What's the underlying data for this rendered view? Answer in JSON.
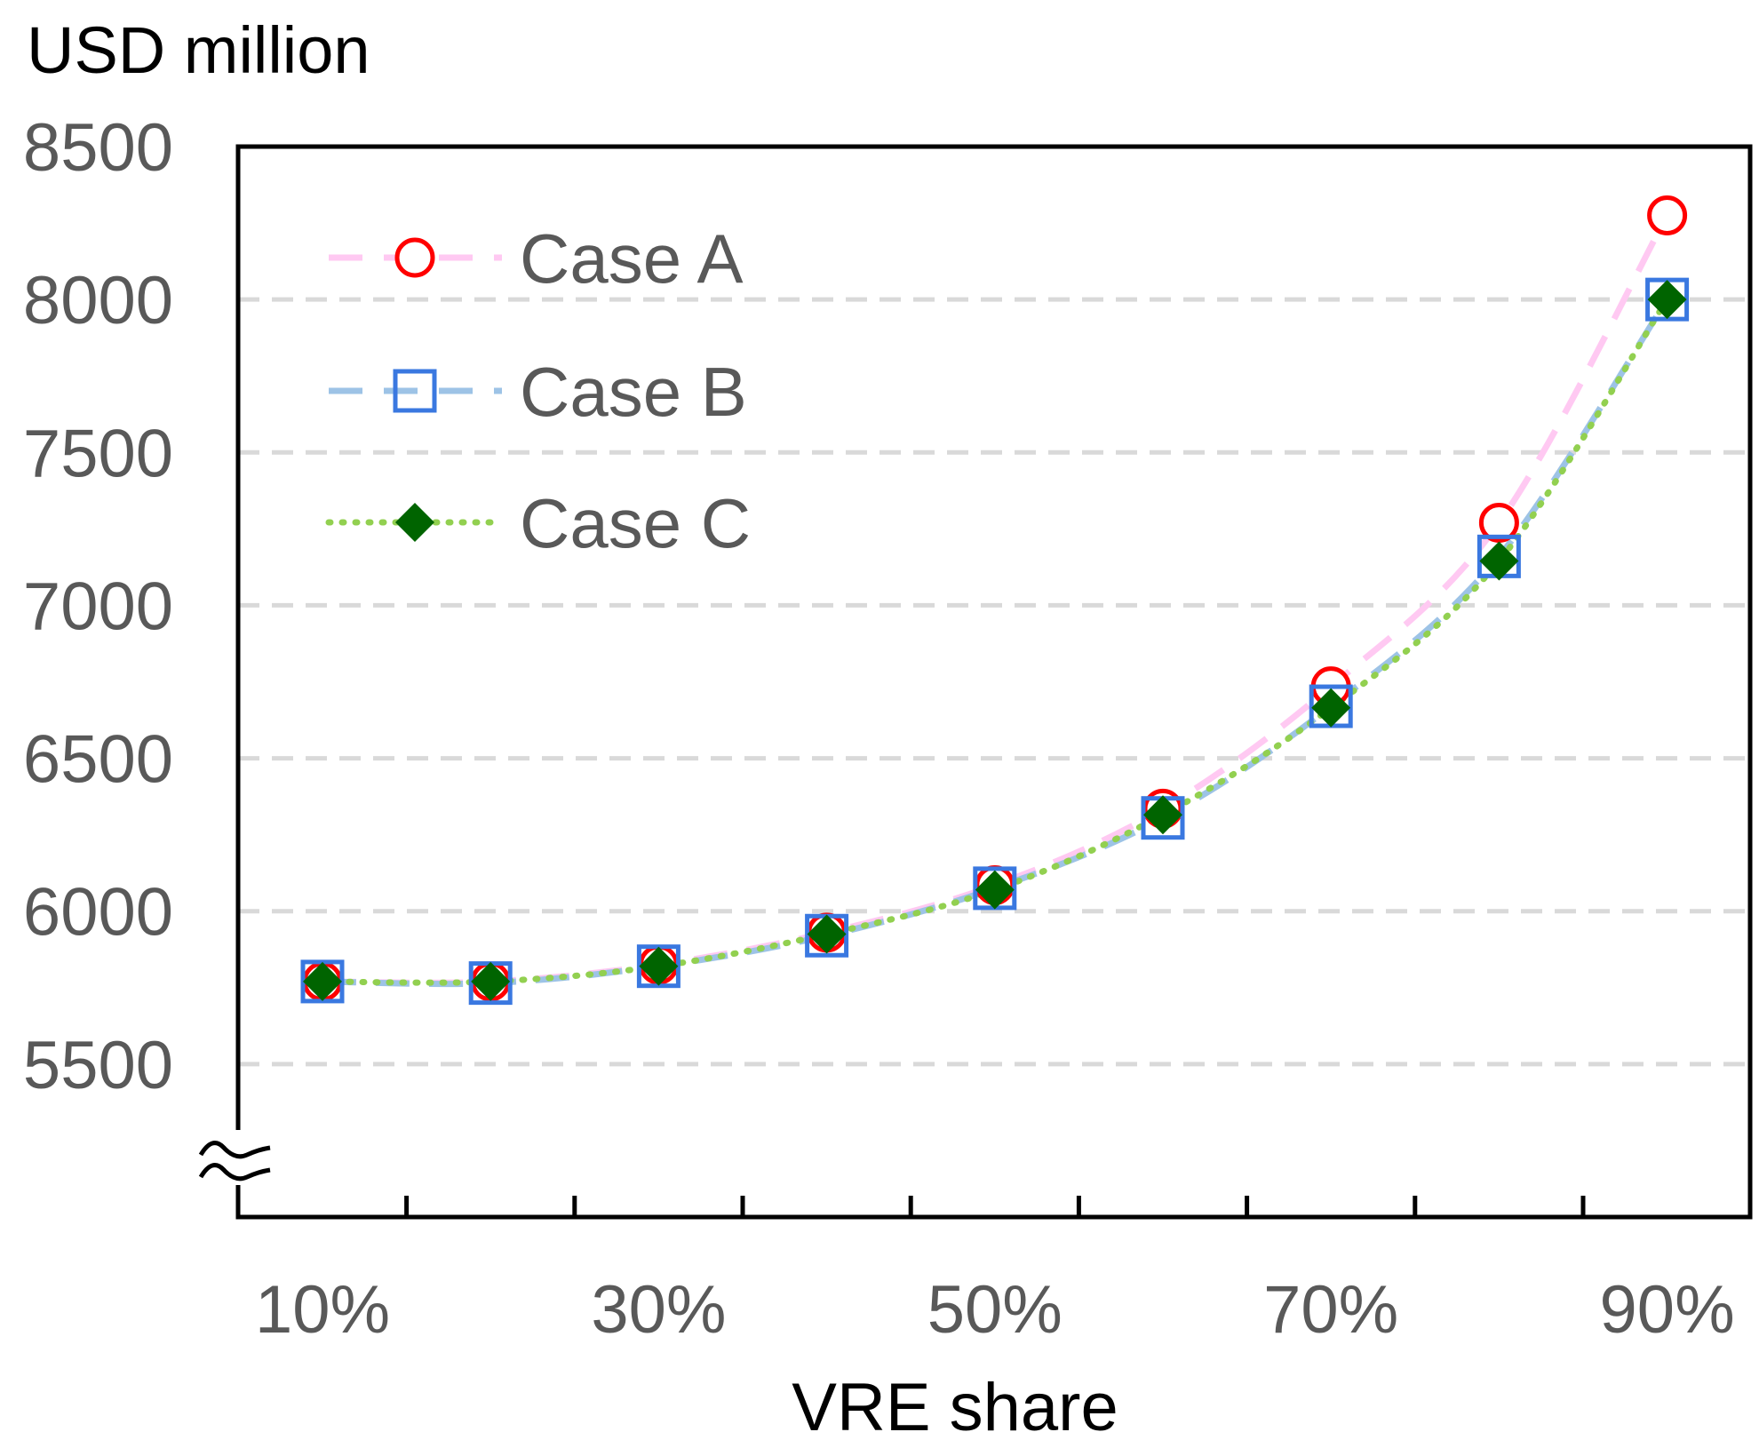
{
  "chart_data": {
    "type": "line",
    "ylabel": "USD million",
    "xlabel": "VRE share",
    "x": [
      "10%",
      "20%",
      "30%",
      "40%",
      "50%",
      "60%",
      "70%",
      "80%",
      "90%"
    ],
    "x_tick_labels": [
      "10%",
      "30%",
      "50%",
      "70%",
      "90%"
    ],
    "y_tick_labels": [
      "5500",
      "6000",
      "6500",
      "7000",
      "7500",
      "8000",
      "8500"
    ],
    "y_ticks": [
      5500,
      6000,
      6500,
      7000,
      7500,
      8000,
      8500
    ],
    "ylim": [
      5000,
      8500
    ],
    "axis_break": true,
    "grid": "horizontal-dashed",
    "legend_position": "top-left",
    "series": [
      {
        "name": "Case A",
        "values": [
          5770,
          5770,
          5825,
          5930,
          6085,
          6335,
          6735,
          7270,
          8275
        ],
        "line_color": "#ffc9f2",
        "line_style": "dashed",
        "marker": "circle",
        "marker_color": "#ff0000"
      },
      {
        "name": "Case B",
        "values": [
          5770,
          5765,
          5820,
          5920,
          6075,
          6305,
          6670,
          7160,
          8000
        ],
        "line_color": "#9dc3e6",
        "line_style": "dashed",
        "marker": "square",
        "marker_color": "#3a78e0"
      },
      {
        "name": "Case C",
        "values": [
          5770,
          5770,
          5820,
          5925,
          6070,
          6315,
          6665,
          7145,
          8000
        ],
        "line_color": "#92d050",
        "line_style": "dotted",
        "marker": "diamond",
        "marker_color": "#006400"
      }
    ]
  }
}
